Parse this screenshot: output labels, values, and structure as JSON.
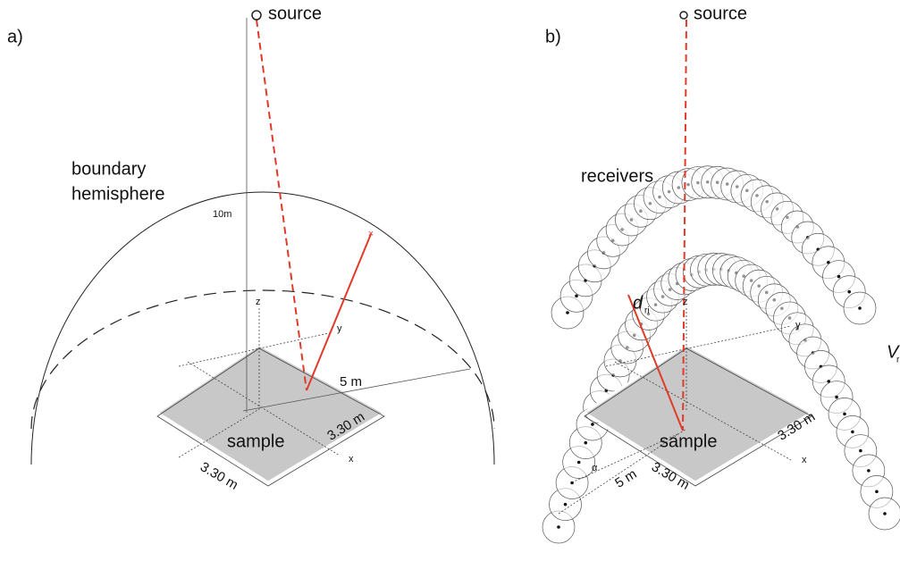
{
  "panels": [
    {
      "label": "a)",
      "source": "source",
      "hemisphere": [
        "boundary",
        "hemisphere"
      ],
      "height": "10m",
      "axes": {
        "z": "z",
        "y": "y",
        "x": "x"
      },
      "radius": "5 m",
      "sample": "sample",
      "depth": "3.30 m",
      "width": "3.30 m"
    },
    {
      "label": "b)",
      "source": "source",
      "receivers": "receivers",
      "distance": {
        "symbol": "d",
        "subscript": "ri"
      },
      "volume": {
        "symbol": "V",
        "subscript": "r"
      },
      "axes": {
        "z": "z",
        "y": "y",
        "x": "x"
      },
      "angle": "α",
      "radius": "5 m",
      "sample": "sample",
      "depth": "3.30 m",
      "width": "3.30 m"
    }
  ]
}
